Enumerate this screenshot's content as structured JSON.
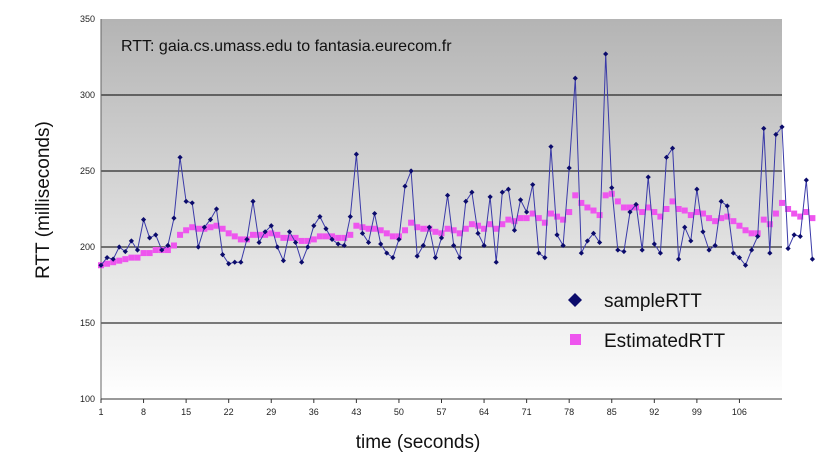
{
  "chart_data": {
    "type": "line",
    "title": "RTT: gaia.cs.umass.edu to fantasia.eurecom.fr",
    "xlabel": "time (seconds)",
    "ylabel": "RTT (milliseconds)",
    "ylim": [
      100,
      350
    ],
    "yticks": [
      100,
      150,
      200,
      250,
      300,
      350
    ],
    "x_tick_labels": [
      "1",
      "8",
      "15",
      "22",
      "29",
      "36",
      "43",
      "50",
      "57",
      "64",
      "71",
      "78",
      "85",
      "92",
      "99",
      "106"
    ],
    "x_tick_positions": [
      1,
      8,
      15,
      22,
      29,
      36,
      43,
      50,
      57,
      64,
      71,
      78,
      85,
      92,
      99,
      106
    ],
    "xlim": [
      1,
      113
    ],
    "grid": true,
    "legend_position": "bottom-right",
    "series": [
      {
        "name": "sampleRTT",
        "marker": "diamond",
        "color": "#0b0b6b",
        "values": [
          188,
          193,
          192,
          200,
          197,
          204,
          198,
          218,
          206,
          208,
          198,
          201,
          219,
          259,
          230,
          229,
          200,
          213,
          218,
          225,
          195,
          189,
          190,
          190,
          205,
          230,
          203,
          210,
          214,
          200,
          191,
          210,
          203,
          190,
          200,
          214,
          220,
          212,
          205,
          202,
          201,
          220,
          261,
          209,
          203,
          222,
          202,
          196,
          193,
          205,
          240,
          250,
          194,
          201,
          213,
          193,
          206,
          234,
          201,
          193,
          230,
          236,
          209,
          201,
          233,
          190,
          236,
          238,
          211,
          231,
          223,
          241,
          196,
          193,
          266,
          208,
          201,
          252,
          311,
          196,
          204,
          209,
          203,
          327,
          239,
          198,
          197,
          223,
          228,
          198,
          246,
          202,
          196,
          259,
          265,
          192,
          213,
          204,
          238,
          210,
          198,
          201,
          230,
          227,
          196,
          193,
          188,
          198,
          207,
          278,
          196,
          274,
          279,
          199,
          208,
          207,
          244,
          192
        ]
      },
      {
        "name": "EstimatedRTT",
        "marker": "square",
        "color": "#ee55ee",
        "values": [
          188,
          189,
          190,
          191,
          192,
          193,
          193,
          196,
          196,
          198,
          198,
          198,
          201,
          208,
          211,
          213,
          212,
          212,
          213,
          214,
          212,
          209,
          207,
          205,
          205,
          208,
          208,
          208,
          209,
          208,
          206,
          206,
          206,
          204,
          204,
          205,
          207,
          207,
          207,
          206,
          206,
          208,
          214,
          213,
          212,
          212,
          211,
          209,
          207,
          207,
          211,
          216,
          213,
          212,
          212,
          210,
          209,
          212,
          211,
          209,
          212,
          215,
          214,
          212,
          215,
          212,
          215,
          218,
          217,
          219,
          219,
          222,
          219,
          216,
          222,
          220,
          218,
          223,
          234,
          229,
          226,
          224,
          221,
          234,
          235,
          230,
          226,
          226,
          226,
          223,
          226,
          223,
          220,
          225,
          230,
          225,
          224,
          221,
          223,
          222,
          219,
          217,
          219,
          220,
          217,
          214,
          211,
          209,
          209,
          218,
          215,
          222,
          229,
          225,
          222,
          220,
          223,
          219
        ]
      }
    ]
  },
  "legend": {
    "items": [
      {
        "label": "sampleRTT",
        "color": "#0b0b6b"
      },
      {
        "label": "EstimatedRTT",
        "color": "#ee55ee"
      }
    ]
  }
}
